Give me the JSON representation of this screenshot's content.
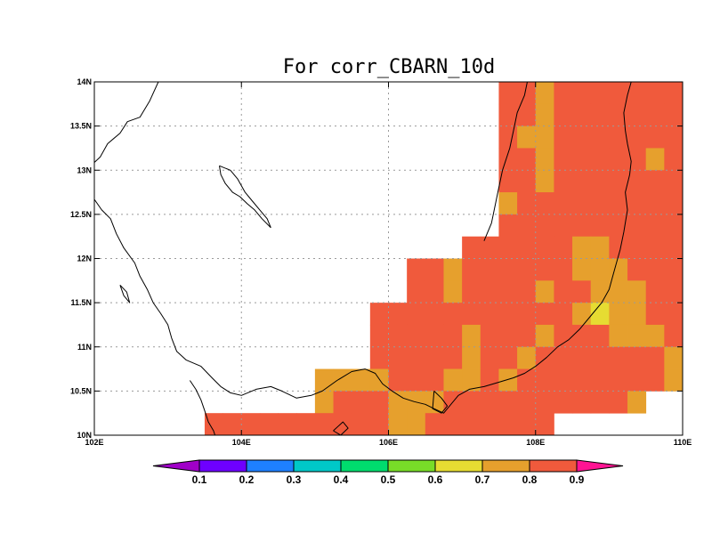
{
  "map": {
    "title": "For corr_CBARN_10d",
    "lon_range": [
      102,
      110
    ],
    "lat_range": [
      10,
      14
    ],
    "cell_size_deg": 0.25,
    "lon_ticks": [
      {
        "value": 102,
        "label": "102E"
      },
      {
        "value": 104,
        "label": "104E"
      },
      {
        "value": 106,
        "label": "106E"
      },
      {
        "value": 108,
        "label": "108E"
      },
      {
        "value": 110,
        "label": "110E"
      }
    ],
    "lat_ticks": [
      {
        "value": 10,
        "label": "10N"
      },
      {
        "value": 10.5,
        "label": "10.5N"
      },
      {
        "value": 11,
        "label": "11N"
      },
      {
        "value": 11.5,
        "label": "11.5N"
      },
      {
        "value": 12,
        "label": "12N"
      },
      {
        "value": 12.5,
        "label": "12.5N"
      },
      {
        "value": 13,
        "label": "13N"
      },
      {
        "value": 13.5,
        "label": "13.5N"
      },
      {
        "value": 14,
        "label": "14N"
      }
    ],
    "grid_lons": [
      104,
      106,
      108
    ],
    "grid_lats": [
      10.5,
      11,
      11.5,
      12,
      12.5,
      13,
      13.5
    ]
  },
  "colorbar": {
    "bins": [
      {
        "color": "#a000c8",
        "label": "0.1"
      },
      {
        "color": "#6e00ff",
        "label": "0.2"
      },
      {
        "color": "#1e80ff",
        "label": "0.3"
      },
      {
        "color": "#00c8c8",
        "label": "0.4"
      },
      {
        "color": "#00dc6e",
        "label": "0.5"
      },
      {
        "color": "#78dc28",
        "label": "0.6"
      },
      {
        "color": "#e6dc32",
        "label": "0.7"
      },
      {
        "color": "#e6a02d",
        "label": "0.8"
      },
      {
        "color": "#f05a3c",
        "label": "0.9"
      },
      {
        "color": "#ff1493",
        "label": ""
      }
    ]
  },
  "field": {
    "legend": {
      "M": "#f05a3c",
      "O": "#e6a02d",
      "Y": "#e6dc32"
    },
    "rows": [
      {
        "lat": 13.875,
        "lon_start": 107.5,
        "cells": "MMOMMMMMMMMM"
      },
      {
        "lat": 13.625,
        "lon_start": 107.5,
        "cells": "MMOMMMMMMMMM"
      },
      {
        "lat": 13.375,
        "lon_start": 107.5,
        "cells": "MOOMMMMMMMM"
      },
      {
        "lat": 13.125,
        "lon_start": 107.5,
        "cells": "MMOMMMMMOMM"
      },
      {
        "lat": 12.875,
        "lon_start": 107.5,
        "cells": "MMOMMMMMMMMO"
      },
      {
        "lat": 12.625,
        "lon_start": 107.5,
        "cells": "OMMMMMMMMMMM"
      },
      {
        "lat": 12.375,
        "lon_start": 107.5,
        "cells": "MMMMMMMMMMMM"
      },
      {
        "lat": 12.125,
        "lon_start": 107.0,
        "cells": "MMMMMMOOMMMMMMM"
      },
      {
        "lat": 11.875,
        "lon_start": 106.25,
        "cells": "MMOMMMMMMOOOMMMM"
      },
      {
        "lat": 11.625,
        "lon_start": 106.25,
        "cells": "MMOMMMMOMMOOOMMMM"
      },
      {
        "lat": 11.375,
        "lon_start": 105.75,
        "cells": "MMMMMMMMMMMOYOOMMMM"
      },
      {
        "lat": 11.125,
        "lon_start": 105.75,
        "cells": "MMMMMOMMMOMMMOOOMOOO"
      },
      {
        "lat": 10.875,
        "lon_start": 105.75,
        "cells": "MMMMMOMMOMMMMMMMOMYY"
      },
      {
        "lat": 10.625,
        "lon_start": 104.0,
        "cells": "....OOOOMMMOOMOMMMMMMMMOO"
      },
      {
        "lat": 10.375,
        "lon_start": 104.0,
        "cells": "....OMMMOOOMMMMMMMMMMO"
      },
      {
        "lat": 10.125,
        "lon_start": 103.5,
        "cells": "MMMMMMMMMMOOMMMMMMM"
      },
      {
        "lat": 9.875,
        "lon_start": 103.5,
        "cells": "...MMMMMMMMMMOM"
      }
    ]
  },
  "coast": {
    "lines": [
      [
        [
          102.87,
          14.0
        ],
        [
          102.75,
          13.78
        ],
        [
          102.62,
          13.6
        ],
        [
          102.45,
          13.55
        ],
        [
          102.35,
          13.42
        ],
        [
          102.18,
          13.3
        ],
        [
          102.08,
          13.15
        ],
        [
          101.95,
          13.05
        ],
        [
          101.88,
          12.95
        ]
      ],
      [
        [
          102.0,
          12.67
        ],
        [
          102.1,
          12.55
        ],
        [
          102.22,
          12.45
        ],
        [
          102.3,
          12.28
        ],
        [
          102.4,
          12.12
        ],
        [
          102.55,
          11.95
        ],
        [
          102.62,
          11.8
        ],
        [
          102.72,
          11.65
        ],
        [
          102.8,
          11.5
        ],
        [
          102.9,
          11.38
        ],
        [
          103.0,
          11.25
        ],
        [
          103.05,
          11.1
        ],
        [
          103.12,
          10.95
        ],
        [
          103.25,
          10.85
        ],
        [
          103.45,
          10.78
        ],
        [
          103.6,
          10.65
        ],
        [
          103.72,
          10.55
        ],
        [
          103.85,
          10.48
        ],
        [
          104.0,
          10.45
        ],
        [
          104.2,
          10.52
        ],
        [
          104.4,
          10.55
        ],
        [
          104.55,
          10.5
        ],
        [
          104.75,
          10.42
        ],
        [
          104.95,
          10.45
        ],
        [
          105.1,
          10.5
        ],
        [
          105.3,
          10.62
        ],
        [
          105.5,
          10.72
        ],
        [
          105.68,
          10.75
        ],
        [
          105.82,
          10.7
        ],
        [
          105.92,
          10.58
        ],
        [
          106.05,
          10.5
        ],
        [
          106.2,
          10.42
        ],
        [
          106.35,
          10.38
        ],
        [
          106.5,
          10.35
        ],
        [
          106.62,
          10.3
        ],
        [
          106.75,
          10.25
        ],
        [
          106.85,
          10.35
        ],
        [
          106.95,
          10.45
        ],
        [
          107.1,
          10.52
        ],
        [
          107.3,
          10.55
        ],
        [
          107.5,
          10.6
        ],
        [
          107.7,
          10.65
        ],
        [
          107.85,
          10.7
        ],
        [
          108.0,
          10.78
        ],
        [
          108.15,
          10.88
        ],
        [
          108.3,
          11.0
        ],
        [
          108.45,
          11.08
        ],
        [
          108.6,
          11.2
        ],
        [
          108.75,
          11.35
        ],
        [
          108.9,
          11.5
        ],
        [
          109.0,
          11.65
        ],
        [
          109.05,
          11.8
        ],
        [
          109.1,
          11.95
        ],
        [
          109.15,
          12.1
        ],
        [
          109.2,
          12.3
        ],
        [
          109.25,
          12.55
        ],
        [
          109.22,
          12.75
        ],
        [
          109.28,
          12.95
        ],
        [
          109.3,
          13.1
        ],
        [
          109.25,
          13.3
        ],
        [
          109.22,
          13.45
        ],
        [
          109.2,
          13.65
        ],
        [
          109.25,
          13.85
        ],
        [
          109.3,
          14.0
        ]
      ],
      [
        [
          107.9,
          14.05
        ],
        [
          107.85,
          13.85
        ],
        [
          107.75,
          13.65
        ],
        [
          107.7,
          13.45
        ],
        [
          107.65,
          13.25
        ],
        [
          107.55,
          13.0
        ],
        [
          107.5,
          12.8
        ],
        [
          107.45,
          12.6
        ],
        [
          107.4,
          12.4
        ],
        [
          107.3,
          12.2
        ]
      ],
      [
        [
          103.7,
          13.05
        ],
        [
          103.85,
          13.0
        ],
        [
          103.95,
          12.9
        ],
        [
          104.05,
          12.75
        ],
        [
          104.15,
          12.65
        ],
        [
          104.25,
          12.55
        ],
        [
          104.35,
          12.45
        ],
        [
          104.4,
          12.35
        ]
      ],
      [
        [
          103.7,
          13.05
        ],
        [
          103.72,
          12.95
        ],
        [
          103.78,
          12.85
        ],
        [
          103.88,
          12.75
        ],
        [
          103.98,
          12.7
        ],
        [
          104.08,
          12.62
        ],
        [
          104.18,
          12.55
        ],
        [
          104.28,
          12.45
        ],
        [
          104.4,
          12.35
        ]
      ],
      [
        [
          103.3,
          10.62
        ],
        [
          103.38,
          10.52
        ],
        [
          103.45,
          10.4
        ],
        [
          103.5,
          10.28
        ],
        [
          103.55,
          10.15
        ],
        [
          103.62,
          10.05
        ],
        [
          103.66,
          9.95
        ]
      ],
      [
        [
          106.62,
          10.5
        ],
        [
          106.72,
          10.42
        ],
        [
          106.8,
          10.33
        ],
        [
          106.72,
          10.25
        ],
        [
          106.6,
          10.3
        ],
        [
          106.62,
          10.5
        ]
      ],
      [
        [
          105.25,
          10.05
        ],
        [
          105.35,
          10.0
        ],
        [
          105.45,
          10.08
        ],
        [
          105.38,
          10.15
        ],
        [
          105.25,
          10.05
        ]
      ],
      [
        [
          102.35,
          11.7
        ],
        [
          102.4,
          11.58
        ],
        [
          102.48,
          11.5
        ],
        [
          102.44,
          11.62
        ],
        [
          102.35,
          11.7
        ]
      ]
    ]
  }
}
